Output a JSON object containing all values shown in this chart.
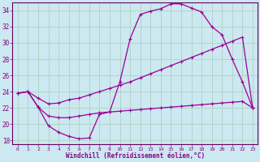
{
  "xlabel": "Windchill (Refroidissement éolien,°C)",
  "background_color": "#cce8f0",
  "grid_color": "#aaccbb",
  "line_color": "#990099",
  "xlim": [
    -0.5,
    23.5
  ],
  "ylim": [
    17.5,
    35.0
  ],
  "yticks": [
    18,
    20,
    22,
    24,
    26,
    28,
    30,
    32,
    34
  ],
  "xticks": [
    0,
    1,
    2,
    3,
    4,
    5,
    6,
    7,
    8,
    9,
    10,
    11,
    12,
    13,
    14,
    15,
    16,
    17,
    18,
    19,
    20,
    21,
    22,
    23
  ],
  "top_x": [
    0,
    1,
    2,
    3,
    4,
    5,
    6,
    7,
    8,
    9,
    10,
    11,
    12,
    13,
    14,
    15,
    16,
    17,
    18,
    19,
    20,
    21,
    22,
    23
  ],
  "top_y": [
    23.8,
    24.0,
    22.1,
    19.8,
    19.0,
    18.5,
    18.2,
    18.3,
    21.2,
    21.5,
    25.2,
    30.5,
    33.5,
    33.9,
    34.2,
    34.8,
    34.8,
    34.3,
    33.8,
    32.0,
    31.0,
    28.0,
    25.2,
    22.0
  ],
  "mid_x": [
    0,
    1,
    2,
    3,
    4,
    5,
    6,
    7,
    8,
    9,
    10,
    11,
    12,
    13,
    14,
    15,
    16,
    17,
    18,
    19,
    20,
    21,
    22,
    23
  ],
  "mid_y": [
    23.8,
    24.0,
    23.2,
    22.5,
    22.6,
    23.0,
    23.2,
    23.6,
    24.0,
    24.4,
    24.8,
    25.2,
    25.7,
    26.2,
    26.7,
    27.2,
    27.7,
    28.2,
    28.7,
    29.2,
    29.7,
    30.2,
    30.7,
    22.0
  ],
  "bot_x": [
    0,
    1,
    2,
    3,
    4,
    5,
    6,
    7,
    8,
    9,
    10,
    11,
    12,
    13,
    14,
    15,
    16,
    17,
    18,
    19,
    20,
    21,
    22,
    23
  ],
  "bot_y": [
    23.8,
    24.0,
    22.1,
    21.0,
    20.8,
    20.8,
    21.0,
    21.2,
    21.4,
    21.5,
    21.6,
    21.7,
    21.8,
    21.9,
    22.0,
    22.1,
    22.2,
    22.3,
    22.4,
    22.5,
    22.6,
    22.7,
    22.8,
    22.0
  ]
}
